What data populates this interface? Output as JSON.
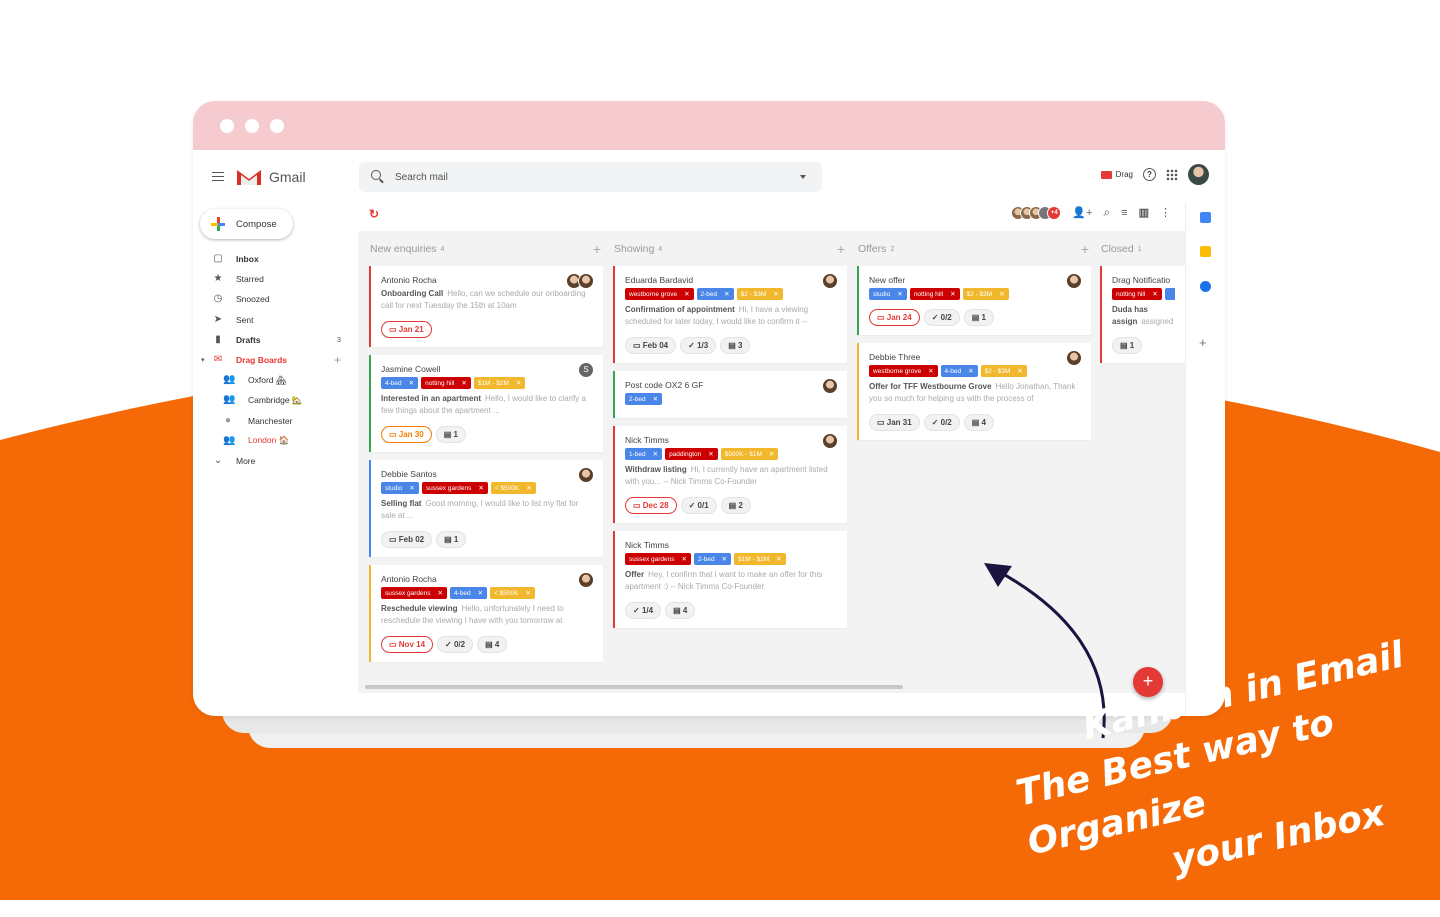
{
  "colors": {
    "background_orange": "#F56A06",
    "titlebar_pink": "#F5CBCF",
    "accent_red": "#E53935",
    "tag_blue": "#4A86E8",
    "tag_red": "#CC0000",
    "tag_yellow": "#F1B82D",
    "arrow": "#1A1440"
  },
  "header": {
    "app_name": "Gmail",
    "search_placeholder": "Search mail",
    "drag_label": "Drag",
    "help_icon": "?"
  },
  "sidebar": {
    "compose_label": "Compose",
    "items": [
      {
        "label": "Inbox",
        "icon": "inbox-icon",
        "bold": true
      },
      {
        "label": "Starred",
        "icon": "star-icon"
      },
      {
        "label": "Snoozed",
        "icon": "clock-icon"
      },
      {
        "label": "Sent",
        "icon": "send-icon"
      },
      {
        "label": "Drafts",
        "icon": "draft-icon",
        "bold": true,
        "count": "3"
      },
      {
        "label": "Drag Boards",
        "icon": "drag-icon",
        "bold": true,
        "accent": true
      },
      {
        "label": "Oxford 🏘",
        "icon": "group-icon",
        "sub": true
      },
      {
        "label": "Cambridge 🏡",
        "icon": "group-icon",
        "sub": true
      },
      {
        "label": "Manchester",
        "icon": "person-icon",
        "sub": true
      },
      {
        "label": "London 🏠",
        "icon": "group-icon",
        "sub": true,
        "accent": true
      },
      {
        "label": "More",
        "icon": "chevron-down-icon"
      }
    ]
  },
  "board": {
    "shared_extra": "+4",
    "columns": [
      {
        "title": "New enquiries",
        "count": "4",
        "cards": [
          {
            "name": "Antonio Rocha",
            "border": "#e53935",
            "avatars": [
              "",
              ""
            ],
            "tags": [],
            "subject": "Onboarding Call",
            "snippet": "Hello, can we schedule our onboarding call for next Tuesday the 15th at 10am",
            "due": {
              "label": "Jan 21",
              "style": "red"
            }
          },
          {
            "name": "Jasmine Cowell",
            "border": "#34a853",
            "avatars": [
              "S"
            ],
            "tags": [
              {
                "label": "4-bed",
                "color": "#4a86e8"
              },
              {
                "label": "notting hill",
                "color": "#cc0000"
              },
              {
                "label": "$1M - $2M",
                "color": "#f1b82d"
              }
            ],
            "subject": "Interested in an apartment",
            "snippet": "Hello, I would like to clarify a few things about the apartment ...",
            "due": {
              "label": "Jan 30",
              "style": "orange"
            },
            "comments": "1"
          },
          {
            "name": "Debbie Santos",
            "border": "#4285f4",
            "avatars": [
              ""
            ],
            "tags": [
              {
                "label": "studio",
                "color": "#4a86e8"
              },
              {
                "label": "sussex gardens",
                "color": "#cc0000"
              },
              {
                "label": "< $500K",
                "color": "#f1b82d"
              }
            ],
            "subject": "Selling flat",
            "snippet": "Good morning, I would like to list my flat for sale at ...",
            "due": {
              "label": "Feb 02",
              "style": "grey"
            },
            "comments": "1"
          },
          {
            "name": "Antonio Rocha",
            "border": "#f1b82d",
            "avatars": [
              ""
            ],
            "tags": [
              {
                "label": "sussex gardens",
                "color": "#cc0000"
              },
              {
                "label": "4-bed",
                "color": "#4a86e8"
              },
              {
                "label": "< $500K",
                "color": "#f1b82d"
              }
            ],
            "subject": "Reschedule viewing",
            "snippet": "Hello, unfortunately I need to reschedule the viewing I have with you tomorrow at",
            "due": {
              "label": "Nov 14",
              "style": "red"
            },
            "checklist": "0/2",
            "comments": "4"
          }
        ]
      },
      {
        "title": "Showing",
        "count": "4",
        "cards": [
          {
            "name": "Eduarda Bardavid",
            "border": "#e53935",
            "avatars": [
              ""
            ],
            "tags": [
              {
                "label": "westborne grove",
                "color": "#cc0000"
              },
              {
                "label": "2-bed",
                "color": "#4a86e8"
              },
              {
                "label": "$2 - $3M",
                "color": "#f1b82d"
              }
            ],
            "subject": "Confirmation of appointment",
            "snippet": "Hi, I have a viewing scheduled for later today, I would like to confirm it --",
            "due": {
              "label": "Feb 04",
              "style": "grey"
            },
            "checklist": "1/3",
            "comments": "3"
          },
          {
            "name": "Post code OX2 6 GF",
            "border": "#34a853",
            "avatars": [
              ""
            ],
            "tags": [
              {
                "label": "2-bed",
                "color": "#4a86e8"
              }
            ]
          },
          {
            "name": "Nick Timms",
            "border": "#e53935",
            "avatars": [
              ""
            ],
            "tags": [
              {
                "label": "1-bed",
                "color": "#4a86e8"
              },
              {
                "label": "paddington",
                "color": "#cc0000"
              },
              {
                "label": "$500K - $1M",
                "color": "#f1b82d"
              }
            ],
            "subject": "Withdraw listing",
            "snippet": "Hi, I currently have an apartment listed with you... -- Nick Timms Co-Founder",
            "due": {
              "label": "Dec 28",
              "style": "red"
            },
            "checklist": "0/1",
            "comments": "2"
          },
          {
            "name": "Nick Timms",
            "border": "#e53935",
            "avatars": [],
            "tags": [
              {
                "label": "sussex gardens",
                "color": "#cc0000"
              },
              {
                "label": "2-bed",
                "color": "#4a86e8"
              },
              {
                "label": "$1M - $2M",
                "color": "#f1b82d"
              }
            ],
            "subject": "Offer",
            "snippet": "Hey, I confirm that I want to make an offer for this apartment :) -- Nick Timms Co-Founder",
            "checklist": "1/4",
            "comments": "4"
          }
        ]
      },
      {
        "title": "Offers",
        "count": "2",
        "cards": [
          {
            "name": "New offer",
            "border": "#34a853",
            "avatars": [
              ""
            ],
            "tags": [
              {
                "label": "studio",
                "color": "#4a86e8"
              },
              {
                "label": "notting hill",
                "color": "#cc0000"
              },
              {
                "label": "$2 - $3M",
                "color": "#f1b82d"
              }
            ],
            "due": {
              "label": "Jan 24",
              "style": "red"
            },
            "checklist": "0/2",
            "comments": "1"
          },
          {
            "name": "Debbie Three",
            "border": "#f1b82d",
            "avatars": [
              ""
            ],
            "tags": [
              {
                "label": "westborne grove",
                "color": "#cc0000"
              },
              {
                "label": "4-bed",
                "color": "#4a86e8"
              },
              {
                "label": "$2 - $3M",
                "color": "#f1b82d"
              }
            ],
            "subject": "Offer for TFF Westbourne Grove",
            "snippet": "Hello Jonathan, Thank you so much for helping us with the process of",
            "due": {
              "label": "Jan 31",
              "style": "grey"
            },
            "checklist": "0/2",
            "comments": "4"
          }
        ]
      },
      {
        "title": "Closed",
        "count": "1",
        "cards": [
          {
            "name": "Drag Notificatio",
            "border": "#e53935",
            "avatars": [],
            "tags": [
              {
                "label": "notting hill",
                "color": "#cc0000"
              },
              {
                "label": "",
                "color": "#4a86e8"
              }
            ],
            "subject": "Duda has assign",
            "snippet": "assigned an emai",
            "comments": "1"
          }
        ]
      }
    ]
  },
  "fab_label": "+",
  "headline": {
    "line1": "Kanban in Email",
    "line2": "The Best way to Organize",
    "line3": "your Inbox"
  }
}
